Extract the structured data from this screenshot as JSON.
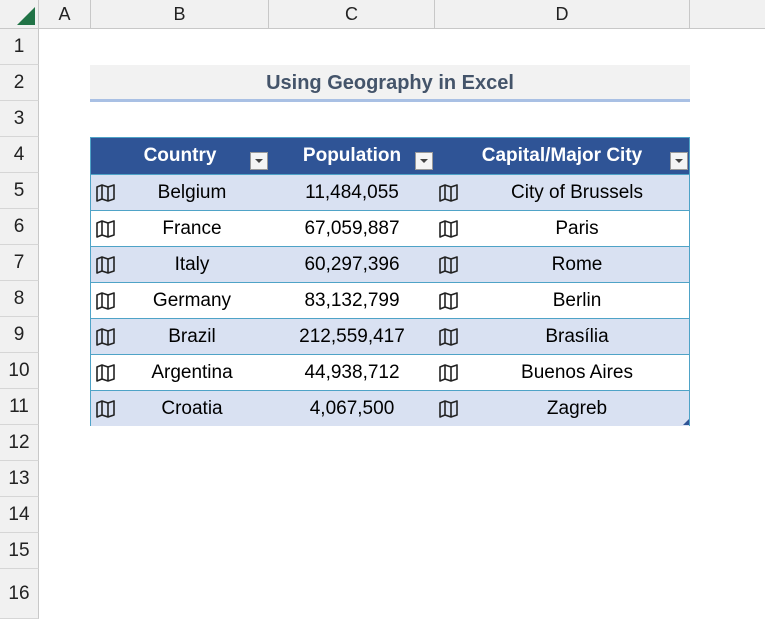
{
  "columns": [
    "A",
    "B",
    "C",
    "D"
  ],
  "rows": [
    "1",
    "2",
    "3",
    "4",
    "5",
    "6",
    "7",
    "8",
    "9",
    "10",
    "11",
    "12",
    "13",
    "14",
    "15",
    "16"
  ],
  "title": "Using Geography in Excel",
  "table": {
    "headers": [
      "Country",
      "Population",
      "Capital/Major City"
    ],
    "rows": [
      {
        "country": "Belgium",
        "population": "11,484,055",
        "capital": "City of Brussels"
      },
      {
        "country": "France",
        "population": "67,059,887",
        "capital": "Paris"
      },
      {
        "country": "Italy",
        "population": "60,297,396",
        "capital": "Rome"
      },
      {
        "country": "Germany",
        "population": "83,132,799",
        "capital": "Berlin"
      },
      {
        "country": "Brazil",
        "population": "212,559,417",
        "capital": "Brasília"
      },
      {
        "country": "Argentina",
        "population": "44,938,712",
        "capital": "Buenos Aires"
      },
      {
        "country": "Croatia",
        "population": "4,067,500",
        "capital": "Zagreb"
      }
    ]
  },
  "icons": {
    "geography": "map-icon",
    "filter": "filter-dropdown-icon"
  },
  "colors": {
    "header_bg": "#2f5496",
    "band_bg": "#d9e1f2",
    "title_text": "#44546a",
    "excel_green": "#217346"
  }
}
